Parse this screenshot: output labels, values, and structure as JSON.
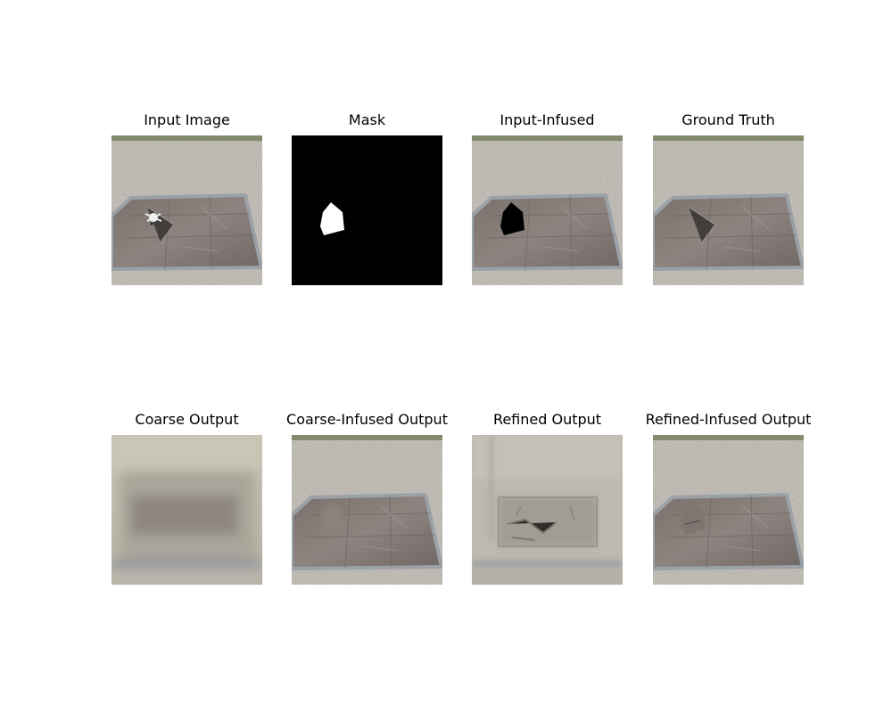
{
  "panels": [
    {
      "title": "Input Image",
      "image": "input-image"
    },
    {
      "title": "Mask",
      "image": "mask-image"
    },
    {
      "title": "Input-Infused",
      "image": "input-infused-image"
    },
    {
      "title": "Ground Truth",
      "image": "ground-truth-image"
    },
    {
      "title": "Coarse Output",
      "image": "coarse-output-image"
    },
    {
      "title": "Coarse-Infused Output",
      "image": "coarse-infused-image"
    },
    {
      "title": "Refined Output",
      "image": "refined-output-image"
    },
    {
      "title": "Refined-Infused Output",
      "image": "refined-infused-image"
    }
  ]
}
